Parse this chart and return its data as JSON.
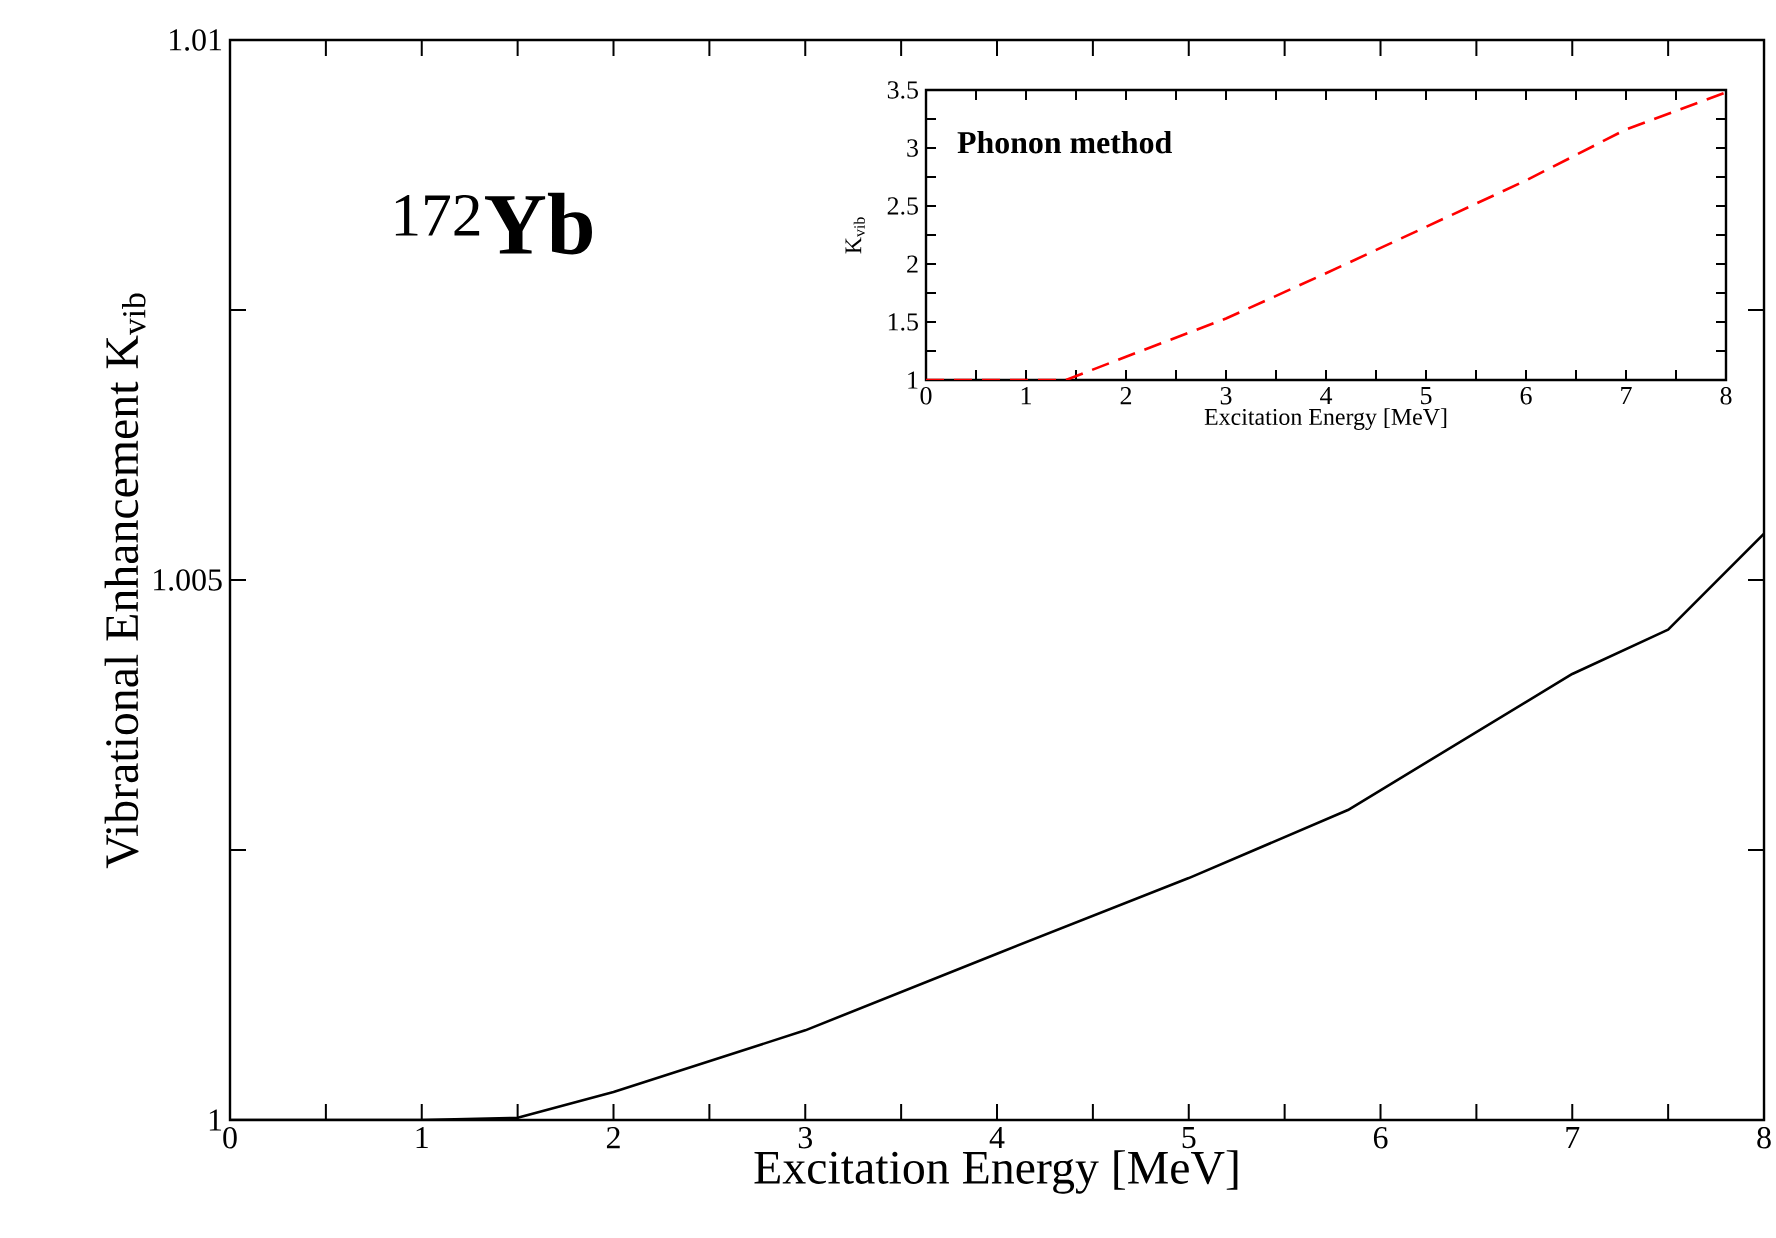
{
  "chart_data": [
    {
      "type": "line",
      "xlabel": "Excitation Energy [MeV]",
      "ylabel": "Vibrational Enhancement K$_{vib}$",
      "annotations": [
        "$^{172}$**Yb**"
      ],
      "x": [
        0,
        1,
        1.5,
        2,
        3,
        4,
        5,
        5.83,
        7,
        7.5,
        8
      ],
      "series": [
        {
          "color": "#000000",
          "line_style": "solid",
          "values": [
            1.0,
            1.0,
            1.00002,
            1.00026,
            1.00083,
            1.00154,
            1.00224,
            1.00287,
            1.00413,
            1.00454,
            1.00543
          ]
        }
      ],
      "xlim": [
        0,
        8
      ],
      "ylim": [
        1,
        1.01
      ],
      "xticks": [
        0,
        {
          "value": 0.5,
          "label": null
        },
        1,
        {
          "value": 1.5,
          "label": null
        },
        2,
        {
          "value": 2.5,
          "label": null
        },
        3,
        {
          "value": 3.5,
          "label": null
        },
        4,
        {
          "value": 4.5,
          "label": null
        },
        5,
        {
          "value": 5.5,
          "label": null
        },
        6,
        {
          "value": 6.5,
          "label": null
        },
        7,
        {
          "value": 7.5,
          "label": null
        },
        8
      ],
      "yticks": [
        1,
        {
          "value": 1.0025,
          "label": null
        },
        1.005,
        {
          "value": 1.0075,
          "label": null
        },
        1.01
      ],
      "marker": "none"
    },
    {
      "type": "line",
      "xlabel": "Excitation Energy [MeV]",
      "ylabel": "K$_{vib}$",
      "annotations": [
        "**Phonon method**"
      ],
      "x": [
        0,
        1,
        1.4,
        2,
        3,
        4,
        5,
        6,
        7,
        8
      ],
      "series": [
        {
          "color": "#ff0000",
          "line_style": "dashed",
          "values": [
            1.0,
            1.0,
            1.0,
            1.2,
            1.53,
            1.92,
            2.32,
            2.72,
            3.16,
            3.48
          ]
        }
      ],
      "xlim": [
        0,
        8
      ],
      "ylim": [
        1,
        3.5
      ],
      "xticks": [
        0,
        {
          "value": 0.5,
          "label": null
        },
        1,
        {
          "value": 1.5,
          "label": null
        },
        2,
        {
          "value": 2.5,
          "label": null
        },
        3,
        {
          "value": 3.5,
          "label": null
        },
        4,
        {
          "value": 4.5,
          "label": null
        },
        5,
        {
          "value": 5.5,
          "label": null
        },
        6,
        {
          "value": 6.5,
          "label": null
        },
        7,
        {
          "value": 7.5,
          "label": null
        },
        8
      ],
      "yticks": [
        1,
        {
          "value": 1.25,
          "label": null
        },
        1.5,
        {
          "value": 1.75,
          "label": null
        },
        2,
        {
          "value": 2.25,
          "label": null
        },
        2.5,
        {
          "value": 2.75,
          "label": null
        },
        3,
        {
          "value": 3.25,
          "label": null
        },
        3.5
      ],
      "marker": "none"
    }
  ]
}
